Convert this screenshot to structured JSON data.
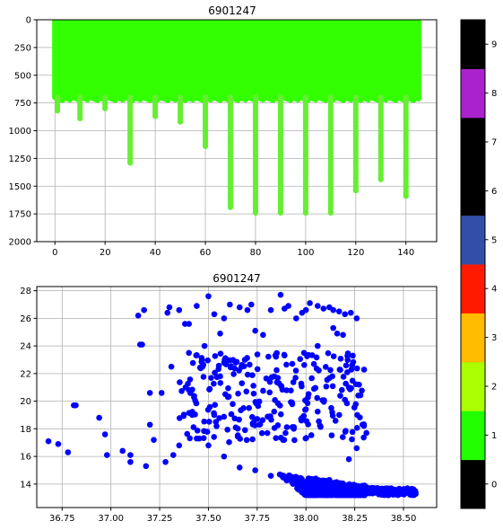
{
  "chart_data": [
    {
      "type": "scatter",
      "title": "6901247",
      "xlabel": "",
      "ylabel": "",
      "xlim": [
        -7.25,
        152.25
      ],
      "ylim": [
        2000,
        0
      ],
      "y_inverted": true,
      "grid": true,
      "x_ticks": [
        0,
        20,
        40,
        60,
        80,
        100,
        120,
        140
      ],
      "y_ticks": [
        0,
        250,
        500,
        750,
        1000,
        1250,
        1500,
        1750,
        2000
      ],
      "x_range": [
        0,
        145
      ],
      "shallow_depth_max": 700,
      "deep_profiles": [
        {
          "x": 1,
          "max": 820
        },
        {
          "x": 10,
          "max": 890
        },
        {
          "x": 20,
          "max": 800
        },
        {
          "x": 30,
          "max": 1290
        },
        {
          "x": 40,
          "max": 870
        },
        {
          "x": 50,
          "max": 920
        },
        {
          "x": 60,
          "max": 1140
        },
        {
          "x": 70,
          "max": 1690
        },
        {
          "x": 80,
          "max": 1740
        },
        {
          "x": 90,
          "max": 1740
        },
        {
          "x": 100,
          "max": 1740
        },
        {
          "x": 110,
          "max": 1740
        },
        {
          "x": 120,
          "max": 1540
        },
        {
          "x": 130,
          "max": 1440
        },
        {
          "x": 140,
          "max": 1590
        }
      ],
      "point_colors": {
        "shallow": "#33ff00",
        "deep": "#66ee33"
      }
    },
    {
      "type": "scatter",
      "title": "6901247",
      "xlabel": "",
      "ylabel": "",
      "xlim": [
        36.62,
        38.67
      ],
      "ylim": [
        12.3,
        28.3
      ],
      "grid": true,
      "x_ticks": [
        "36.75",
        "37.00",
        "37.25",
        "37.50",
        "37.75",
        "38.00",
        "38.25",
        "38.50"
      ],
      "y_ticks": [
        14,
        16,
        18,
        20,
        22,
        24,
        26,
        28
      ],
      "point_color": "#0000ff",
      "sample_points": [
        [
          36.68,
          17.1
        ],
        [
          36.73,
          16.9
        ],
        [
          36.78,
          16.3
        ],
        [
          36.81,
          19.7
        ],
        [
          36.82,
          19.7
        ],
        [
          36.94,
          18.8
        ],
        [
          36.97,
          17.6
        ],
        [
          36.98,
          16.1
        ],
        [
          37.06,
          16.4
        ],
        [
          37.1,
          16.1
        ],
        [
          37.1,
          15.6
        ],
        [
          37.14,
          26.2
        ],
        [
          37.15,
          24.1
        ],
        [
          37.16,
          24.1
        ],
        [
          37.17,
          26.6
        ],
        [
          37.18,
          15.3
        ],
        [
          37.2,
          18.3
        ],
        [
          37.2,
          20.6
        ],
        [
          37.22,
          17.2
        ],
        [
          37.26,
          20.6
        ],
        [
          37.28,
          15.6
        ],
        [
          37.29,
          26.4
        ],
        [
          37.3,
          26.8
        ],
        [
          37.31,
          22.5
        ],
        [
          37.35,
          26.6
        ],
        [
          37.38,
          25.6
        ],
        [
          37.4,
          25.6
        ],
        [
          37.44,
          26.9
        ],
        [
          37.48,
          24.0
        ],
        [
          37.5,
          27.6
        ],
        [
          37.53,
          26.3
        ],
        [
          37.56,
          24.9
        ],
        [
          37.58,
          26.0
        ],
        [
          37.61,
          27.0
        ],
        [
          37.64,
          22.8
        ],
        [
          37.66,
          26.8
        ],
        [
          37.7,
          26.6
        ],
        [
          37.72,
          27.0
        ],
        [
          37.74,
          25.1
        ],
        [
          37.78,
          24.8
        ],
        [
          37.82,
          26.6
        ],
        [
          37.87,
          27.7
        ],
        [
          37.89,
          26.7
        ],
        [
          37.91,
          26.9
        ],
        [
          37.95,
          26.0
        ],
        [
          37.98,
          26.4
        ],
        [
          38.0,
          26.6
        ],
        [
          38.02,
          27.1
        ],
        [
          38.06,
          26.9
        ],
        [
          38.09,
          26.7
        ],
        [
          38.12,
          26.8
        ],
        [
          38.14,
          26.6
        ],
        [
          38.17,
          26.5
        ],
        [
          38.2,
          26.3
        ],
        [
          38.23,
          26.4
        ],
        [
          38.26,
          26.0
        ],
        [
          38.14,
          25.3
        ],
        [
          38.16,
          24.9
        ],
        [
          38.06,
          24.0
        ],
        [
          37.99,
          23.5
        ],
        [
          37.93,
          22.7
        ],
        [
          38.19,
          24.8
        ],
        [
          38.24,
          23.3
        ],
        [
          38.22,
          21.0
        ],
        [
          38.2,
          20.1
        ],
        [
          37.47,
          22.5
        ],
        [
          37.4,
          23.5
        ],
        [
          37.56,
          21.8
        ],
        [
          37.6,
          20.3
        ],
        [
          37.68,
          19.5
        ],
        [
          37.53,
          19.0
        ],
        [
          37.64,
          18.1
        ],
        [
          37.44,
          17.3
        ],
        [
          37.35,
          16.8
        ],
        [
          37.32,
          16.1
        ],
        [
          37.5,
          16.8
        ],
        [
          37.58,
          16.0
        ],
        [
          37.66,
          15.2
        ],
        [
          37.74,
          15.0
        ],
        [
          37.82,
          14.6
        ],
        [
          37.9,
          14.3
        ],
        [
          37.98,
          14.0
        ],
        [
          38.05,
          14.4
        ],
        [
          38.12,
          14.3
        ],
        [
          38.18,
          13.5
        ],
        [
          38.25,
          13.4
        ],
        [
          38.32,
          13.4
        ],
        [
          38.4,
          13.5
        ],
        [
          38.46,
          13.3
        ],
        [
          38.52,
          13.5
        ],
        [
          38.56,
          13.5
        ],
        [
          38.29,
          18.3
        ],
        [
          38.31,
          17.7
        ],
        [
          38.26,
          16.6
        ],
        [
          38.22,
          15.8
        ]
      ]
    }
  ],
  "colorbar": {
    "ticks": [
      "0",
      "1",
      "2",
      "3",
      "4",
      "5",
      "6",
      "7",
      "8",
      "9"
    ],
    "colors": [
      "#000000",
      "#22ff00",
      "#aaff00",
      "#ffbb00",
      "#ff1a00",
      "#334ea8",
      "#000000",
      "#000000",
      "#aa22cc",
      "#000000"
    ]
  }
}
